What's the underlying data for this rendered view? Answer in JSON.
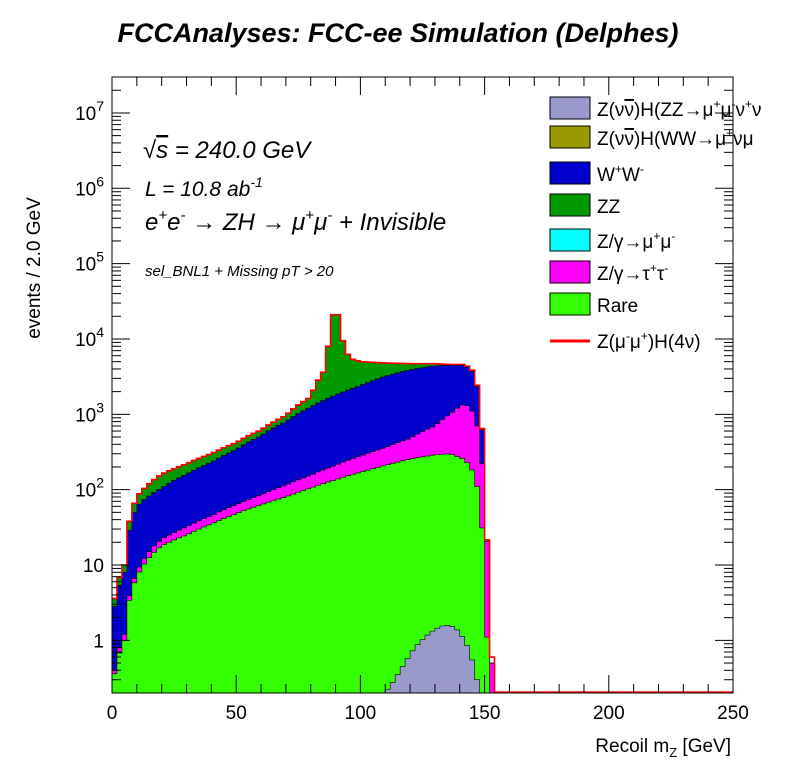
{
  "title": "FCCAnalyses: FCC-ee Simulation (Delphes)",
  "chart_data": {
    "type": "area",
    "subtype": "stacked-step-histogram",
    "xlabel": "Recoil m_Z [GeV]",
    "ylabel": "events / 2.0 GeV",
    "xlim": [
      0,
      250
    ],
    "ylim": [
      0.2,
      30000000
    ],
    "y_scale": "log",
    "bin_width": 2.0,
    "x_ticks": [
      0,
      50,
      100,
      150,
      200,
      250
    ],
    "x_tick_labels": [
      "0",
      "50",
      "100",
      "150",
      "200",
      "250"
    ],
    "y_ticks": [
      1,
      10,
      100,
      1000,
      10000,
      100000,
      1000000,
      10000000
    ],
    "y_tick_labels": [
      "1",
      "10",
      "10^2",
      "10^3",
      "10^4",
      "10^5",
      "10^6",
      "10^7"
    ],
    "annotations": [
      "√s = 240.0 GeV",
      "L = 10.8 ab^-1",
      "e+e- → ZH → μ+μ- + Invisible",
      "sel_BNL1 + Missing pT > 20"
    ],
    "legend_position": "top-right",
    "legend": [
      {
        "label": "Z(νν̄)H(ZZ→μ+μ-ν+ν",
        "color": "#9999cc",
        "style": "box"
      },
      {
        "label": "Z(νν̄)H(WW→μ+νμ",
        "color": "#999900",
        "style": "box"
      },
      {
        "label": "W+W-",
        "color": "#0000cc",
        "style": "box"
      },
      {
        "label": "ZZ",
        "color": "#009900",
        "style": "box"
      },
      {
        "label": "Z/γ→μ+μ-",
        "color": "#00ffff",
        "style": "box"
      },
      {
        "label": "Z/γ→τ+τ-",
        "color": "#ff00ff",
        "style": "box"
      },
      {
        "label": "Rare",
        "color": "#33ff00",
        "style": "box"
      },
      {
        "label": "Z(μ-μ+)H(4ν)",
        "color": "#ff0000",
        "style": "line"
      }
    ],
    "series": [
      {
        "name": "Rare",
        "color": "#33ff00",
        "x": [
          0,
          5,
          10,
          20,
          30,
          40,
          50,
          60,
          70,
          80,
          90,
          100,
          110,
          120,
          130,
          136,
          142,
          146,
          148,
          150,
          152,
          154
        ],
        "y": [
          0.2,
          1.0,
          7,
          18,
          25,
          35,
          48,
          63,
          80,
          105,
          135,
          170,
          210,
          255,
          290,
          300,
          250,
          160,
          60,
          2,
          0.2,
          0
        ]
      },
      {
        "name": "Z/γ→τ+τ-",
        "color": "#ff00ff",
        "x": [
          0,
          5,
          10,
          20,
          30,
          40,
          50,
          60,
          70,
          80,
          90,
          100,
          110,
          120,
          130,
          136,
          142,
          146,
          148,
          150,
          152,
          154
        ],
        "y": [
          0.2,
          1.2,
          8,
          22,
          32,
          45,
          63,
          85,
          115,
          155,
          210,
          280,
          360,
          480,
          700,
          1000,
          1400,
          1000,
          400,
          40,
          1,
          0
        ]
      },
      {
        "name": "W+W-",
        "color": "#0000cc",
        "x": [
          0,
          5,
          10,
          20,
          30,
          40,
          50,
          60,
          70,
          80,
          90,
          100,
          110,
          120,
          130,
          136,
          142,
          146,
          148,
          150,
          152,
          154
        ],
        "y": [
          1.5,
          8,
          60,
          105,
          160,
          230,
          340,
          520,
          800,
          1250,
          1800,
          2400,
          3200,
          3900,
          4400,
          4500,
          4500,
          3500,
          1200,
          40,
          1,
          0
        ]
      },
      {
        "name": "ZZ",
        "color": "#009900",
        "x": [
          0,
          5,
          10,
          20,
          30,
          40,
          50,
          60,
          70,
          80,
          86,
          88,
          90,
          92,
          94,
          96,
          100,
          110,
          120,
          130,
          136,
          142,
          146,
          148,
          150,
          152,
          154
        ],
        "y": [
          2,
          10,
          80,
          160,
          220,
          300,
          420,
          620,
          960,
          1700,
          4000,
          12000,
          30000,
          12000,
          7000,
          5500,
          5000,
          4800,
          4700,
          4700,
          4600,
          4600,
          3600,
          1250,
          42,
          1,
          0
        ]
      },
      {
        "name": "Z(νν̄)H(ZZ→μ+μ-ν+ν",
        "color": "#9999cc",
        "x": [
          110,
          114,
          118,
          122,
          126,
          130,
          134,
          138,
          142,
          146,
          148
        ],
        "y": [
          0.2,
          0.3,
          0.5,
          0.8,
          1.1,
          1.4,
          1.6,
          1.5,
          1.0,
          0.4,
          0.2
        ]
      },
      {
        "name": "Z(μ-μ+)H(4ν)",
        "color": "#ff0000",
        "x": [
          0,
          5,
          10,
          20,
          30,
          40,
          50,
          60,
          70,
          80,
          86,
          88,
          90,
          92,
          94,
          96,
          100,
          110,
          120,
          130,
          136,
          142,
          146,
          148,
          150,
          152,
          154,
          160,
          250
        ],
        "y": [
          2,
          10,
          80,
          160,
          220,
          300,
          420,
          620,
          960,
          1700,
          4000,
          12000,
          30000,
          12000,
          7000,
          5500,
          5000,
          4800,
          4700,
          4700,
          4600,
          4600,
          3600,
          1250,
          42,
          1,
          0.2,
          0.2,
          0.2
        ]
      }
    ]
  }
}
